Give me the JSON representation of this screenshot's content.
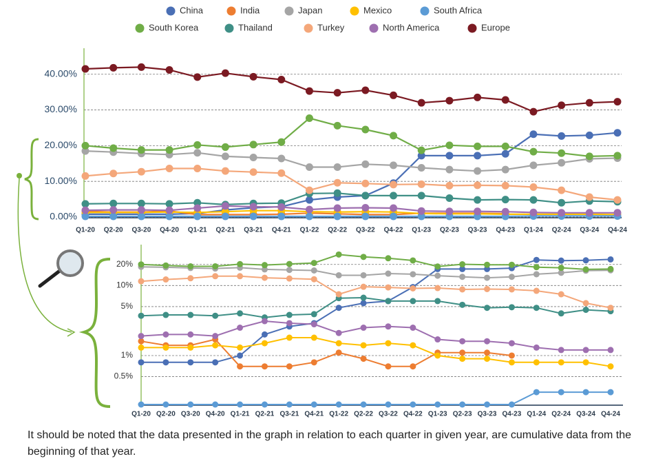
{
  "chart_data": [
    {
      "type": "line",
      "categories": [
        "Q1-20",
        "Q2-20",
        "Q3-20",
        "Q4-20",
        "Q1-21",
        "Q2-21",
        "Q3-21",
        "Q4-21",
        "Q1-22",
        "Q2-22",
        "Q3-22",
        "Q4-22",
        "Q1-23",
        "Q2-23",
        "Q3-23",
        "Q4-23",
        "Q1-24",
        "Q2-24",
        "Q3-24",
        "Q4-24"
      ],
      "ylim": [
        0,
        44
      ],
      "yticks": [
        {
          "value": 0,
          "label": "0.00%"
        },
        {
          "value": 10,
          "label": "10.00%"
        },
        {
          "value": 20,
          "label": "20.00%"
        },
        {
          "value": 30,
          "label": "30.00%"
        },
        {
          "value": 40,
          "label": "40.00%"
        }
      ],
      "grid": true,
      "log": false,
      "legend": "top",
      "series": [
        {
          "name": "China",
          "color": "#4a6fb5",
          "values": [
            0.8,
            0.8,
            0.8,
            0.8,
            1.0,
            2.0,
            2.6,
            2.9,
            4.8,
            5.6,
            6,
            9.5,
            17.2,
            17.2,
            17.2,
            17.7,
            23.2,
            22.7,
            22.9,
            23.6
          ]
        },
        {
          "name": "India",
          "color": "#ed7d31",
          "values": [
            1.6,
            1.4,
            1.4,
            1.7,
            0.7,
            0.7,
            0.7,
            0.8,
            1.1,
            0.9,
            0.7,
            0.7,
            1.1,
            1.1,
            1.1,
            1.0,
            null,
            null,
            null,
            null
          ]
        },
        {
          "name": "Japan",
          "color": "#a5a5a5",
          "values": [
            18.5,
            18.2,
            17.8,
            17.5,
            18,
            17,
            16.7,
            16.4,
            14,
            14,
            14.8,
            14.5,
            13.8,
            13.3,
            12.9,
            13.3,
            14.5,
            15.2,
            16.3,
            16.5
          ]
        },
        {
          "name": "Mexico",
          "color": "#ffc000",
          "values": [
            1.3,
            1.3,
            1.3,
            1.4,
            1.3,
            1.5,
            1.8,
            1.8,
            1.5,
            1.4,
            1.5,
            1.4,
            1.0,
            0.9,
            0.9,
            0.8,
            0.8,
            0.8,
            0.8,
            0.7
          ]
        },
        {
          "name": "South Africa",
          "color": "#5b9bd5",
          "values": [
            0.2,
            0.2,
            0.2,
            0.2,
            0.2,
            0.2,
            0.2,
            0.2,
            0.2,
            0.2,
            0.2,
            0.2,
            0.2,
            0.2,
            0.2,
            0.2,
            0.3,
            0.3,
            0.3,
            0.3
          ]
        },
        {
          "name": "South Korea",
          "color": "#70ad47",
          "values": [
            20,
            19.3,
            18.8,
            18.8,
            20.2,
            19.6,
            20.3,
            21,
            27.7,
            25.6,
            24.5,
            22.8,
            18.7,
            20.1,
            19.8,
            19.8,
            18.3,
            17.9,
            17,
            17.2
          ]
        },
        {
          "name": "Thailand",
          "color": "#3f8f86",
          "values": [
            3.7,
            3.8,
            3.8,
            3.7,
            4,
            3.5,
            3.8,
            3.9,
            6.6,
            6.7,
            6,
            6,
            6,
            5.3,
            4.8,
            4.9,
            4.8,
            4,
            4.5,
            4.3
          ]
        },
        {
          "name": "Turkey",
          "color": "#f4a77a",
          "values": [
            11.5,
            12.2,
            12.7,
            13.6,
            13.6,
            12.9,
            12.6,
            12.3,
            7.5,
            9.6,
            9.4,
            9.1,
            9.2,
            8.8,
            8.9,
            8.8,
            8.4,
            7.5,
            5.6,
            4.8
          ]
        },
        {
          "name": "North America",
          "color": "#9e6fb0",
          "values": [
            1.9,
            2,
            2,
            1.9,
            2.5,
            3.1,
            2.9,
            2.8,
            2.1,
            2.5,
            2.6,
            2.5,
            1.7,
            1.6,
            1.6,
            1.5,
            1.3,
            1.2,
            1.2,
            1.2
          ]
        },
        {
          "name": "Europe",
          "color": "#7b1a22",
          "values": [
            41.5,
            41.8,
            42,
            41.2,
            39.2,
            40.3,
            39.3,
            38.5,
            35.3,
            34.8,
            35.5,
            34.1,
            32,
            32.6,
            33.5,
            32.8,
            29.5,
            31.3,
            32,
            32.3
          ]
        }
      ]
    },
    {
      "type": "line",
      "categories": [
        "Q1-20",
        "Q2-20",
        "Q3-20",
        "Q4-20",
        "Q1-21",
        "Q2-21",
        "Q3-21",
        "Q4-21",
        "Q1-22",
        "Q2-22",
        "Q3-22",
        "Q4-22",
        "Q1-23",
        "Q2-23",
        "Q3-23",
        "Q4-23",
        "Q1-24",
        "Q2-24",
        "Q3-24",
        "Q4-24"
      ],
      "ylim": [
        0.2,
        32
      ],
      "yticks": [
        {
          "value": 0.5,
          "label": "0.5%"
        },
        {
          "value": 1,
          "label": "1%"
        },
        {
          "value": 5,
          "label": "5%"
        },
        {
          "value": 10,
          "label": "10%"
        },
        {
          "value": 20,
          "label": "20%"
        }
      ],
      "grid": true,
      "log": true,
      "series": [
        {
          "color": "#4a6fb5",
          "values": [
            0.8,
            0.8,
            0.8,
            0.8,
            1.0,
            2.0,
            2.6,
            2.9,
            4.8,
            5.6,
            6,
            9.5,
            17.2,
            17.2,
            17.2,
            17.7,
            23.2,
            22.7,
            22.9,
            23.6
          ]
        },
        {
          "color": "#ed7d31",
          "values": [
            1.6,
            1.4,
            1.4,
            1.7,
            0.7,
            0.7,
            0.7,
            0.8,
            1.1,
            0.9,
            0.7,
            0.7,
            1.1,
            1.1,
            1.1,
            1.0,
            null,
            null,
            null,
            null
          ]
        },
        {
          "color": "#a5a5a5",
          "values": [
            18.5,
            18.2,
            17.8,
            17.5,
            18,
            17,
            16.7,
            16.4,
            14,
            14,
            14.8,
            14.5,
            13.8,
            13.3,
            12.9,
            13.3,
            14.5,
            15.2,
            16.3,
            16.5
          ]
        },
        {
          "color": "#ffc000",
          "values": [
            1.3,
            1.3,
            1.3,
            1.4,
            1.3,
            1.5,
            1.8,
            1.8,
            1.5,
            1.4,
            1.5,
            1.4,
            1.0,
            0.9,
            0.9,
            0.8,
            0.8,
            0.8,
            0.8,
            0.7
          ]
        },
        {
          "color": "#5b9bd5",
          "values": [
            0.2,
            0.2,
            0.2,
            0.2,
            0.2,
            0.2,
            0.2,
            0.2,
            0.2,
            0.2,
            0.2,
            0.2,
            0.2,
            0.2,
            0.2,
            0.2,
            0.3,
            0.3,
            0.3,
            0.3
          ]
        },
        {
          "color": "#70ad47",
          "values": [
            20,
            19.3,
            18.8,
            18.8,
            20.2,
            19.6,
            20.3,
            21,
            27.7,
            25.6,
            24.5,
            22.8,
            18.7,
            20.1,
            19.8,
            19.8,
            18.3,
            17.9,
            17,
            17.2
          ]
        },
        {
          "color": "#3f8f86",
          "values": [
            3.7,
            3.8,
            3.8,
            3.7,
            4,
            3.5,
            3.8,
            3.9,
            6.6,
            6.7,
            6,
            6,
            6,
            5.3,
            4.8,
            4.9,
            4.8,
            4,
            4.5,
            4.3
          ]
        },
        {
          "color": "#f4a77a",
          "values": [
            11.5,
            12.2,
            12.7,
            13.6,
            13.6,
            12.9,
            12.6,
            12.3,
            7.5,
            9.6,
            9.4,
            9.1,
            9.2,
            8.8,
            8.9,
            8.8,
            8.4,
            7.5,
            5.6,
            4.8
          ]
        },
        {
          "color": "#9e6fb0",
          "values": [
            1.9,
            2,
            2,
            1.9,
            2.5,
            3.1,
            2.9,
            2.8,
            2.1,
            2.5,
            2.6,
            2.5,
            1.7,
            1.6,
            1.6,
            1.5,
            1.3,
            1.2,
            1.2,
            1.2
          ]
        }
      ]
    }
  ],
  "note": "It should be noted that the data presented in the graph in relation to each quarter in given year, are cumulative data from the beginning of that year."
}
